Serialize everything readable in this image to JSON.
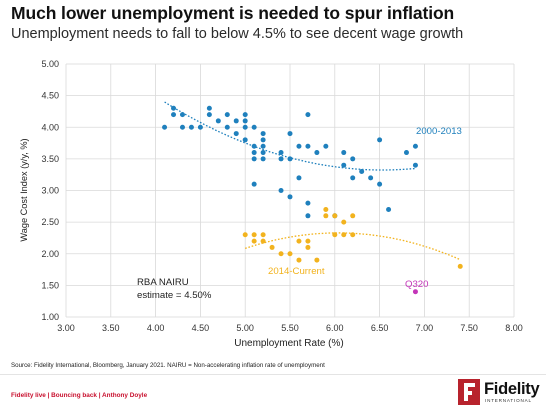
{
  "header": {
    "title": "Much lower unemployment is needed to spur inflation",
    "subtitle": "Unemployment needs to fall to below 4.5% to see decent wage growth"
  },
  "footer": {
    "source": "Source: Fidelity International, Bloomberg, January 2021. NAIRU = Non-accelerating inflation rate of unemployment",
    "left_label": "Fidelity live | Bouncing back | Anthony Doyle",
    "logo_text": "Fidelity",
    "logo_sub": "INTERNATIONAL"
  },
  "colors": {
    "blue": "#1f80bd",
    "gold": "#f2b31e",
    "magenta": "#c334b8",
    "grid": "#d9d9d9",
    "brand_red": "#b8232d"
  },
  "chart_data": {
    "type": "scatter",
    "xlabel": "Unemployment Rate (%)",
    "ylabel": "Wage Cost Index (y/y, %)",
    "xlim": [
      3.0,
      8.0
    ],
    "ylim": [
      1.0,
      5.0
    ],
    "xticks": [
      "3.00",
      "3.50",
      "4.00",
      "4.50",
      "5.00",
      "5.50",
      "6.00",
      "6.50",
      "7.00",
      "7.50",
      "8.00"
    ],
    "yticks": [
      "1.00",
      "1.50",
      "2.00",
      "2.50",
      "3.00",
      "3.50",
      "4.00",
      "4.50",
      "5.00"
    ],
    "grid": "vertical and horizontal",
    "series": [
      {
        "name": "2000-2013",
        "color_key": "blue",
        "points": [
          [
            4.1,
            4.0
          ],
          [
            4.2,
            4.3
          ],
          [
            4.2,
            4.2
          ],
          [
            4.3,
            4.2
          ],
          [
            4.3,
            4.0
          ],
          [
            4.4,
            4.0
          ],
          [
            4.5,
            4.0
          ],
          [
            4.6,
            4.2
          ],
          [
            4.6,
            4.3
          ],
          [
            4.7,
            4.1
          ],
          [
            4.8,
            4.0
          ],
          [
            4.8,
            4.2
          ],
          [
            4.9,
            4.1
          ],
          [
            4.9,
            3.9
          ],
          [
            5.0,
            4.2
          ],
          [
            5.0,
            4.1
          ],
          [
            5.0,
            4.0
          ],
          [
            5.0,
            3.8
          ],
          [
            5.1,
            4.0
          ],
          [
            5.1,
            3.7
          ],
          [
            5.1,
            3.6
          ],
          [
            5.1,
            3.5
          ],
          [
            5.1,
            3.1
          ],
          [
            5.2,
            3.9
          ],
          [
            5.2,
            3.8
          ],
          [
            5.2,
            3.7
          ],
          [
            5.2,
            3.6
          ],
          [
            5.2,
            3.5
          ],
          [
            5.4,
            3.6
          ],
          [
            5.4,
            3.5
          ],
          [
            5.4,
            3.0
          ],
          [
            5.5,
            3.9
          ],
          [
            5.5,
            3.5
          ],
          [
            5.5,
            2.9
          ],
          [
            5.6,
            3.7
          ],
          [
            5.6,
            3.2
          ],
          [
            5.7,
            4.2
          ],
          [
            5.7,
            3.7
          ],
          [
            5.7,
            2.8
          ],
          [
            5.7,
            2.6
          ],
          [
            5.8,
            3.6
          ],
          [
            5.9,
            3.7
          ],
          [
            6.0,
            2.6
          ],
          [
            6.1,
            3.6
          ],
          [
            6.1,
            3.4
          ],
          [
            6.2,
            3.5
          ],
          [
            6.2,
            3.2
          ],
          [
            6.3,
            3.3
          ],
          [
            6.4,
            3.2
          ],
          [
            6.5,
            3.8
          ],
          [
            6.5,
            3.1
          ],
          [
            6.6,
            2.7
          ],
          [
            6.8,
            3.6
          ],
          [
            6.9,
            3.7
          ],
          [
            6.9,
            3.4
          ]
        ],
        "trend": {
          "label": "2000-2013",
          "x_range": [
            4.1,
            6.9
          ]
        }
      },
      {
        "name": "2014-Current",
        "color_key": "gold",
        "points": [
          [
            5.0,
            2.3
          ],
          [
            5.1,
            2.3
          ],
          [
            5.1,
            2.2
          ],
          [
            5.2,
            2.3
          ],
          [
            5.2,
            2.2
          ],
          [
            5.3,
            2.1
          ],
          [
            5.4,
            2.0
          ],
          [
            5.5,
            2.0
          ],
          [
            5.6,
            1.9
          ],
          [
            5.6,
            2.2
          ],
          [
            5.7,
            2.2
          ],
          [
            5.7,
            2.1
          ],
          [
            5.8,
            1.9
          ],
          [
            5.9,
            2.7
          ],
          [
            5.9,
            2.6
          ],
          [
            6.0,
            2.6
          ],
          [
            6.0,
            2.3
          ],
          [
            6.1,
            2.5
          ],
          [
            6.1,
            2.3
          ],
          [
            6.2,
            2.6
          ],
          [
            6.2,
            2.3
          ],
          [
            7.4,
            1.8
          ]
        ],
        "trend": {
          "label": "2014-Current",
          "x_range": [
            5.0,
            7.4
          ]
        }
      },
      {
        "name": "Q320",
        "color_key": "magenta",
        "points": [
          [
            6.9,
            1.4
          ]
        ]
      }
    ],
    "annotations": {
      "nairu_line1": "RBA NAIRU",
      "nairu_line2": "estimate = 4.50%"
    }
  }
}
